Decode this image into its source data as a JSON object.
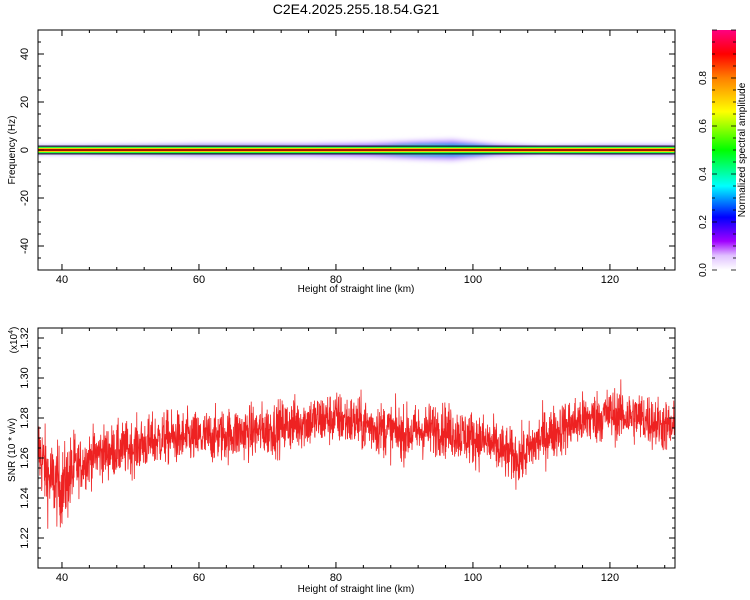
{
  "figure": {
    "title": "C2E4.2025.255.18.54.G21"
  },
  "chart_data": [
    {
      "type": "heatmap",
      "title": "C2E4.2025.255.18.54.G21",
      "xlabel": "Height of straight line (km)",
      "ylabel": "Frequency (Hz)",
      "xlim": [
        36.5,
        129.5
      ],
      "ylim": [
        -50,
        50
      ],
      "x_ticks": [
        40,
        60,
        80,
        100,
        120
      ],
      "y_ticks": [
        -40,
        -20,
        0,
        20,
        40
      ],
      "colorbar": {
        "label": "Normalized spectral amplitude",
        "range": [
          0,
          1
        ],
        "ticks": [
          0.0,
          0.2,
          0.4,
          0.6,
          0.8
        ],
        "colors": [
          "#ffffff",
          "#a000ff",
          "#0000ff",
          "#00ffff",
          "#00ff00",
          "#ffff00",
          "#ff0000",
          "#ff0080"
        ]
      },
      "description_values": {
        "center_frequency_hz": 0,
        "main_band_halfwidth_hz": 1,
        "spread_envelope": [
          {
            "x": 37,
            "halfwidth_hz": 2.0
          },
          {
            "x": 50,
            "halfwidth_hz": 2.5
          },
          {
            "x": 60,
            "halfwidth_hz": 3.0
          },
          {
            "x": 75,
            "halfwidth_hz": 3.0
          },
          {
            "x": 85,
            "halfwidth_hz": 3.5
          },
          {
            "x": 92,
            "halfwidth_hz": 4.5
          },
          {
            "x": 97,
            "halfwidth_hz": 5.0
          },
          {
            "x": 103,
            "halfwidth_hz": 3.0
          },
          {
            "x": 110,
            "halfwidth_hz": 2.0
          },
          {
            "x": 120,
            "halfwidth_hz": 2.5
          },
          {
            "x": 129,
            "halfwidth_hz": 2.5
          }
        ]
      }
    },
    {
      "type": "line",
      "xlabel": "Height of straight line (km)",
      "ylabel": "SNR (10 * v/v)",
      "y_multiplier_label": "(x10",
      "y_multiplier_exp": "4",
      "xlim": [
        36.5,
        129.5
      ],
      "ylim": [
        1.205,
        1.325
      ],
      "x_ticks": [
        40,
        60,
        80,
        100,
        120
      ],
      "y_ticks": [
        1.22,
        1.24,
        1.26,
        1.28,
        1.3,
        1.32
      ],
      "series": [
        {
          "color": "#ee2222",
          "trend": [
            {
              "x": 36.5,
              "y": 1.265
            },
            {
              "x": 38,
              "y": 1.25
            },
            {
              "x": 40,
              "y": 1.245
            },
            {
              "x": 42,
              "y": 1.255
            },
            {
              "x": 45,
              "y": 1.262
            },
            {
              "x": 50,
              "y": 1.265
            },
            {
              "x": 55,
              "y": 1.27
            },
            {
              "x": 60,
              "y": 1.27
            },
            {
              "x": 65,
              "y": 1.272
            },
            {
              "x": 70,
              "y": 1.274
            },
            {
              "x": 75,
              "y": 1.278
            },
            {
              "x": 80,
              "y": 1.28
            },
            {
              "x": 85,
              "y": 1.276
            },
            {
              "x": 90,
              "y": 1.272
            },
            {
              "x": 95,
              "y": 1.275
            },
            {
              "x": 98,
              "y": 1.272
            },
            {
              "x": 102,
              "y": 1.268
            },
            {
              "x": 105,
              "y": 1.262
            },
            {
              "x": 107,
              "y": 1.26
            },
            {
              "x": 110,
              "y": 1.27
            },
            {
              "x": 115,
              "y": 1.278
            },
            {
              "x": 120,
              "y": 1.282
            },
            {
              "x": 125,
              "y": 1.28
            },
            {
              "x": 129.5,
              "y": 1.274
            }
          ],
          "noise_amplitude": 0.012
        }
      ]
    }
  ]
}
